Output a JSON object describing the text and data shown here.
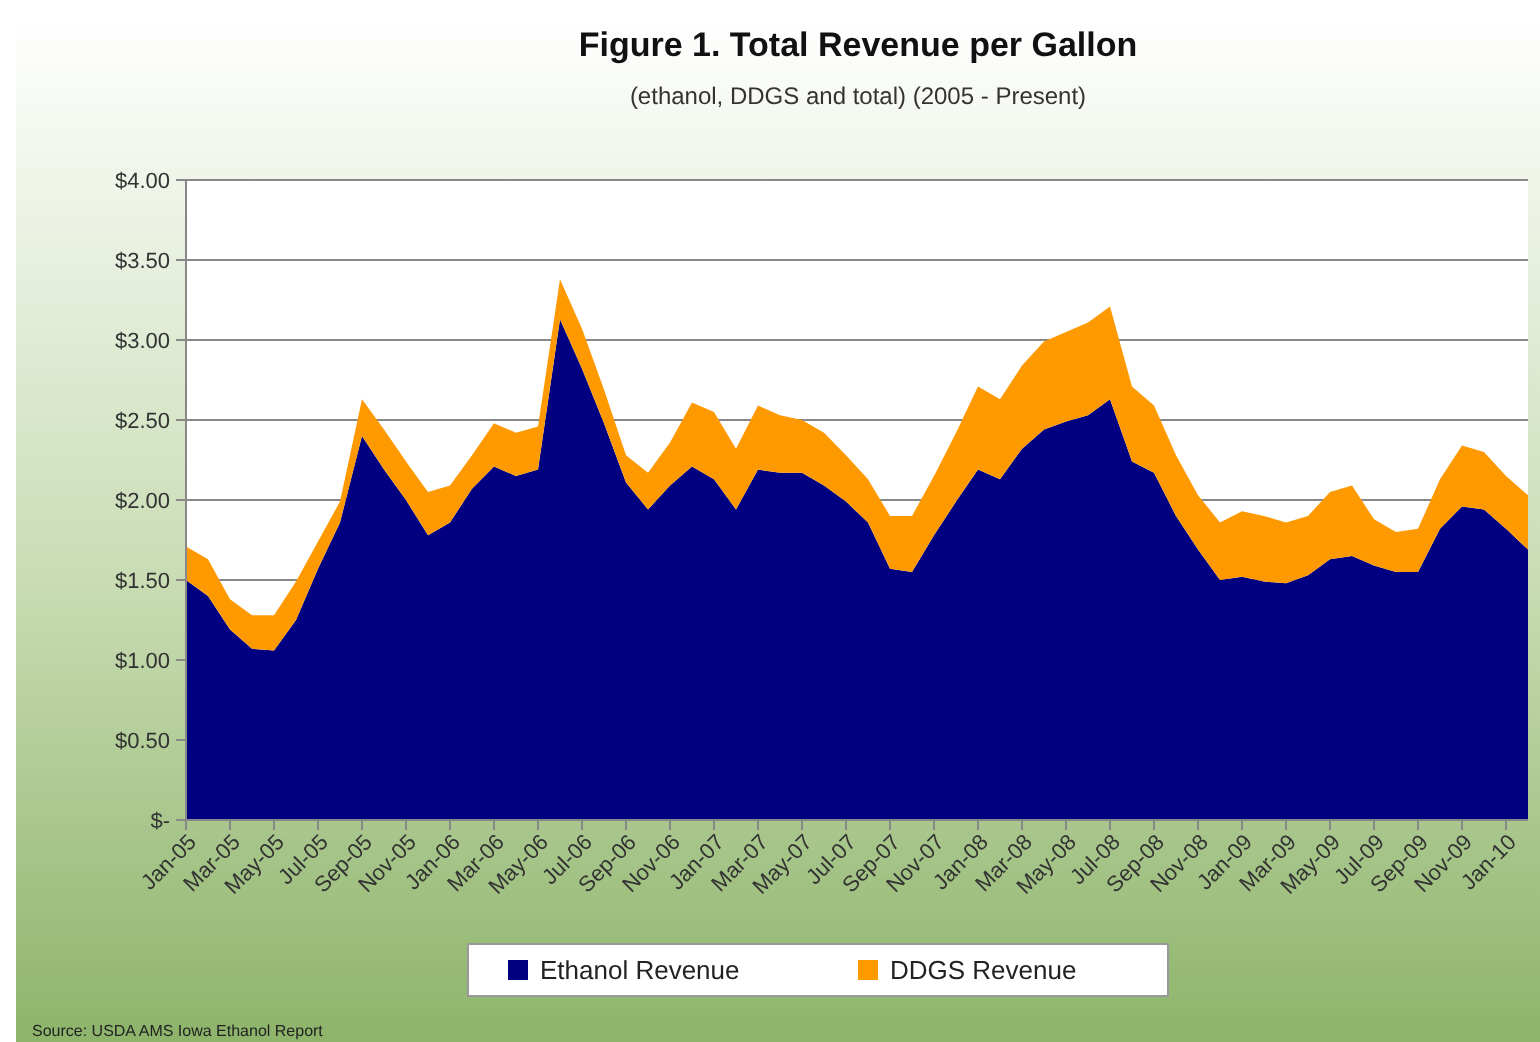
{
  "chart_data": {
    "type": "area",
    "stacked": true,
    "title": "Figure 1. Total Revenue per Gallon",
    "subtitle": "(ethanol, DDGS and total) (2005 - Present)",
    "categories": [
      "Jan-05",
      null,
      "Mar-05",
      null,
      "May-05",
      null,
      "Jul-05",
      null,
      "Sep-05",
      null,
      "Nov-05",
      null,
      "Jan-06",
      null,
      "Mar-06",
      null,
      "May-06",
      null,
      "Jul-06",
      null,
      "Sep-06",
      null,
      "Nov-06",
      null,
      "Jan-07",
      null,
      "Mar-07",
      null,
      "May-07",
      null,
      "Jul-07",
      null,
      "Sep-07",
      null,
      "Nov-07",
      null,
      "Jan-08",
      null,
      "Mar-08",
      null,
      "May-08",
      null,
      "Jul-08",
      null,
      "Sep-08",
      null,
      "Nov-08",
      null,
      "Jan-09",
      null,
      "Mar-09",
      null,
      "May-09",
      null,
      "Jul-09",
      null,
      "Sep-09",
      null,
      "Nov-09",
      null,
      "Jan-10",
      null
    ],
    "series": [
      {
        "name": "Ethanol Revenue",
        "color": "#000080",
        "values": [
          1.5,
          1.4,
          1.19,
          1.07,
          1.06,
          1.25,
          1.57,
          1.86,
          2.4,
          2.19,
          2.0,
          1.78,
          1.86,
          2.07,
          2.21,
          2.15,
          2.19,
          3.13,
          2.82,
          2.48,
          2.11,
          1.94,
          2.09,
          2.21,
          2.13,
          1.94,
          2.19,
          2.17,
          2.17,
          2.09,
          1.99,
          1.86,
          1.57,
          1.55,
          1.78,
          1.99,
          2.19,
          2.13,
          2.32,
          2.44,
          2.49,
          2.53,
          2.63,
          2.24,
          2.17,
          1.9,
          1.69,
          1.5,
          1.52,
          1.49,
          1.48,
          1.53,
          1.63,
          1.65,
          1.59,
          1.55,
          1.55,
          1.82,
          1.96,
          1.94,
          1.82,
          1.69
        ]
      },
      {
        "name": "DDGS Revenue",
        "color": "#ff9900",
        "values": [
          0.21,
          0.23,
          0.19,
          0.21,
          0.22,
          0.24,
          0.17,
          0.13,
          0.23,
          0.25,
          0.24,
          0.27,
          0.23,
          0.21,
          0.27,
          0.27,
          0.27,
          0.25,
          0.25,
          0.21,
          0.17,
          0.23,
          0.27,
          0.4,
          0.42,
          0.38,
          0.4,
          0.36,
          0.33,
          0.33,
          0.29,
          0.27,
          0.33,
          0.35,
          0.37,
          0.43,
          0.52,
          0.5,
          0.52,
          0.55,
          0.56,
          0.58,
          0.58,
          0.47,
          0.42,
          0.38,
          0.34,
          0.36,
          0.41,
          0.41,
          0.38,
          0.37,
          0.42,
          0.44,
          0.29,
          0.25,
          0.27,
          0.31,
          0.38,
          0.36,
          0.33,
          0.34
        ]
      }
    ],
    "ylim": [
      0,
      4
    ],
    "yticks": [
      {
        "value": 0,
        "label": "$-"
      },
      {
        "value": 0.5,
        "label": "$0.50"
      },
      {
        "value": 1,
        "label": "$1.00"
      },
      {
        "value": 1.5,
        "label": "$1.50"
      },
      {
        "value": 2,
        "label": "$2.00"
      },
      {
        "value": 2.5,
        "label": "$2.50"
      },
      {
        "value": 3,
        "label": "$3.00"
      },
      {
        "value": 3.5,
        "label": "$3.50"
      },
      {
        "value": 4,
        "label": "$4.00"
      }
    ],
    "grid": "y",
    "legend": "bottom",
    "annotations": [
      "Source: USDA AMS Iowa Ethanol Report"
    ]
  }
}
